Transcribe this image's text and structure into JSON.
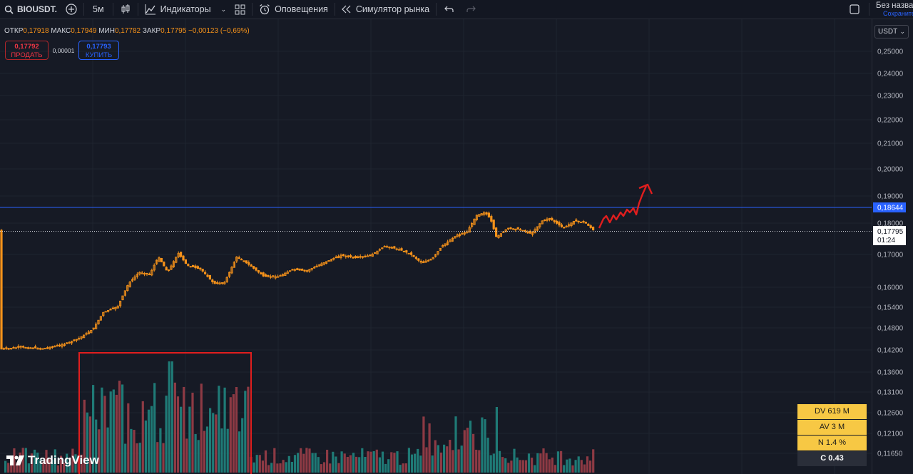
{
  "toolbar": {
    "symbol": "BIOUSDT.",
    "interval": "5м",
    "indicators": "Индикаторы",
    "alerts": "Оповещения",
    "replay": "Симулятор рынка",
    "layout_title": "Без назван",
    "layout_save": "Сохраните"
  },
  "legend": {
    "open_label": "ОТКР",
    "open": "0,17918",
    "high_label": "МАКС",
    "high": "0,17949",
    "low_label": "МИН",
    "low": "0,17782",
    "close_label": "ЗАКР",
    "close": "0,17795",
    "change": "−0,00123 (−0,69%)"
  },
  "trade": {
    "sell_price": "0,17792",
    "sell_label": "ПРОДАТЬ",
    "spread": "0,00001",
    "buy_price": "0,17793",
    "buy_label": "КУПИТЬ"
  },
  "axis": {
    "currency": "USDT",
    "ticks": [
      "0,25000",
      "0,24000",
      "0,23000",
      "0,22000",
      "0,21000",
      "0,20000",
      "0,19000",
      "0,18000",
      "0,17000",
      "0,16000",
      "0,15400",
      "0,14800",
      "0,14200",
      "0,13600",
      "0,13100",
      "0,12600",
      "0,12100",
      "0,11650"
    ],
    "line_label": "0,18644",
    "last_price": "0,17795",
    "countdown": "01:24"
  },
  "volume_stats": {
    "dv": "DV 619 M",
    "av": "AV 3 M",
    "n": "N 1.4 %",
    "c": "C  0.43"
  },
  "logo_text": "TradingView",
  "colors": {
    "background": "#161a25",
    "candle": "#f7931a",
    "vol_up": "#26a69a",
    "vol_down": "#ef5350",
    "hline": "#2962ff",
    "annotation": "#e01e1e"
  }
}
